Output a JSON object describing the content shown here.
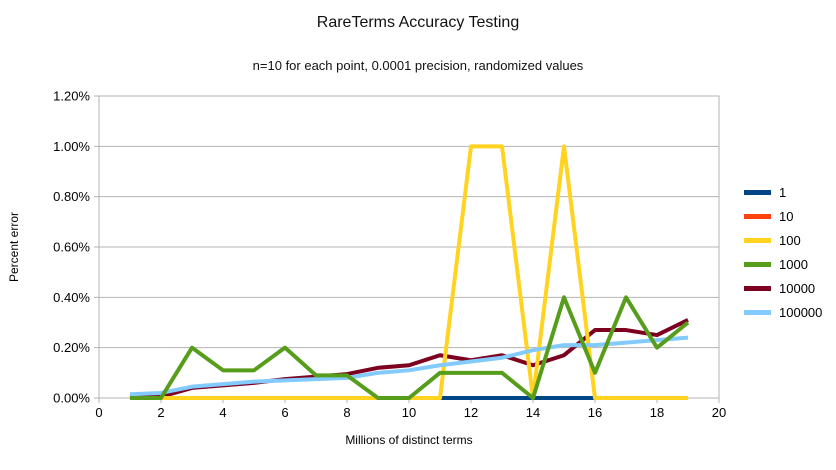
{
  "title": "RareTerms Accuracy Testing",
  "subtitle": "n=10 for each point, 0.0001 precision, randomized values",
  "chart_data": {
    "type": "line",
    "title": "RareTerms Accuracy Testing",
    "subtitle": "n=10 for each point, 0.0001 precision, randomized values",
    "xlabel": "Millions of distinct terms",
    "ylabel": "Percent error",
    "xlim": [
      0,
      20
    ],
    "ylim_percent": [
      0,
      1.2
    ],
    "x_ticks": [
      0,
      2,
      4,
      6,
      8,
      10,
      12,
      14,
      16,
      18,
      20
    ],
    "x_tick_labels": [
      "0",
      "2",
      "4",
      "6",
      "8",
      "10",
      "12",
      "14",
      "16",
      "18",
      "20"
    ],
    "y_ticks_percent": [
      0.0,
      0.2,
      0.4,
      0.6,
      0.8,
      1.0,
      1.2
    ],
    "y_tick_labels": [
      "0.00%",
      "0.20%",
      "0.40%",
      "0.60%",
      "0.80%",
      "1.00%",
      "1.20%"
    ],
    "grid": true,
    "grid_color": "#b3b3b3",
    "axis_text_color": "#000000",
    "legend_position": "right",
    "x": [
      1,
      2,
      3,
      4,
      5,
      6,
      7,
      8,
      9,
      10,
      11,
      12,
      13,
      14,
      15,
      16,
      17,
      18,
      19
    ],
    "series": [
      {
        "name": "1",
        "color": "#004586",
        "values_percent": [
          0.01,
          0,
          0,
          0,
          0,
          0,
          0,
          0,
          0,
          0,
          0,
          0,
          0,
          0,
          0,
          0,
          0,
          0,
          0
        ]
      },
      {
        "name": "10",
        "color": "#FF420E",
        "values_percent": [
          0,
          0,
          0,
          0,
          0,
          0,
          0,
          0,
          0,
          0,
          0,
          0,
          0,
          0,
          0,
          0,
          0,
          0,
          0
        ]
      },
      {
        "name": "100",
        "color": "#FFD320",
        "values_percent": [
          0,
          0,
          0,
          0,
          0,
          0,
          0,
          0,
          0,
          0,
          0,
          1.0,
          1.0,
          0,
          1.0,
          0,
          0,
          0,
          0
        ]
      },
      {
        "name": "1000",
        "color": "#579D1C",
        "values_percent": [
          0,
          0,
          0.2,
          0.11,
          0.11,
          0.2,
          0.09,
          0.09,
          0,
          0,
          0.1,
          0.1,
          0.1,
          0,
          0.4,
          0.1,
          0.4,
          0.2,
          0.3
        ]
      },
      {
        "name": "10000",
        "color": "#7E0021",
        "values_percent": [
          0.01,
          0.005,
          0.04,
          0.05,
          0.06,
          0.075,
          0.085,
          0.095,
          0.12,
          0.13,
          0.17,
          0.15,
          0.17,
          0.13,
          0.17,
          0.27,
          0.27,
          0.25,
          0.31
        ]
      },
      {
        "name": "100000",
        "color": "#83CAFF",
        "values_percent": [
          0.015,
          0.02,
          0.045,
          0.055,
          0.065,
          0.07,
          0.075,
          0.08,
          0.1,
          0.11,
          0.13,
          0.145,
          0.16,
          0.19,
          0.21,
          0.21,
          0.22,
          0.23,
          0.24
        ]
      }
    ],
    "draw_order": [
      "10",
      "1",
      "10000",
      "100",
      "100000",
      "1000"
    ]
  }
}
